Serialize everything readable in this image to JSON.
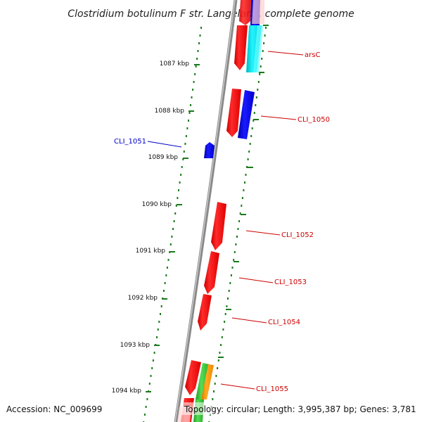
{
  "title": "Clostridium botulinum F str. Langeland, complete genome",
  "footer": {
    "accession": "Accession: NC_009699",
    "topology": "Topology: circular; Length: 3,995,387 bp; Genes: 3,781"
  },
  "ticks": [
    "1087 kbp",
    "1088 kbp",
    "1089 kbp",
    "1090 kbp",
    "1091 kbp",
    "1092 kbp",
    "1093 kbp",
    "1094 kbp"
  ],
  "gene_labels": [
    {
      "text": "arsC",
      "color": "#cc0000"
    },
    {
      "text": "CLI_1050",
      "color": "#cc0000"
    },
    {
      "text": "CLI_1051",
      "color": "#0000cc"
    },
    {
      "text": "CLI_1052",
      "color": "#cc0000"
    },
    {
      "text": "CLI_1053",
      "color": "#cc0000"
    },
    {
      "text": "CLI_1054",
      "color": "#cc0000"
    },
    {
      "text": "CLI_1055",
      "color": "#cc0000"
    }
  ],
  "colors": {
    "forward_gene": "#ff0000",
    "reverse_gene": "#0000ee",
    "cog_cyan": "#00e5ee",
    "cog_green": "#33cc33",
    "cog_orange": "#ff9900",
    "backbone": "#888888",
    "dots": "#1a7a1a"
  }
}
